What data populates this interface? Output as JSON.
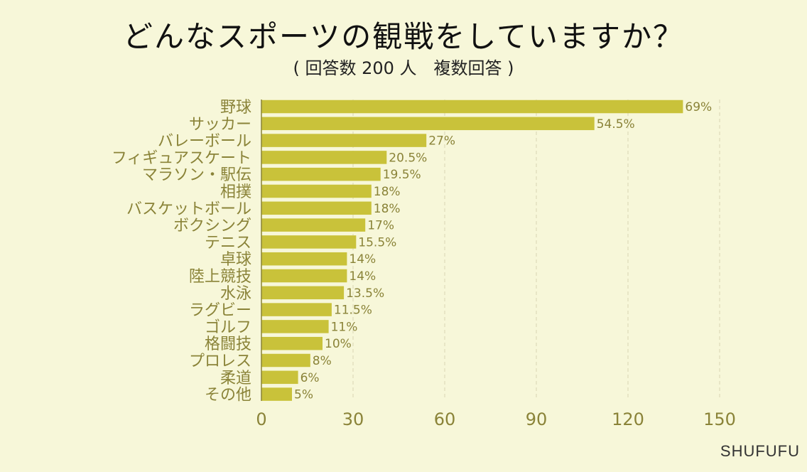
{
  "header": {
    "title": "どんなスポーツの観戦をしていますか？",
    "subtitle": "( 回答数 200 人　複数回答 )"
  },
  "footer": {
    "brand": "SHUFUFU"
  },
  "colors": {
    "bar": "#c9c23a",
    "grid": "#d8d6b4",
    "axis": "#8a8338",
    "background": "#f7f7d9"
  },
  "chart_data": {
    "type": "bar",
    "orientation": "horizontal",
    "categories": [
      "野球",
      "サッカー",
      "バレーボール",
      "フィギュアスケート",
      "マラソン・駅伝",
      "相撲",
      "バスケットボール",
      "ボクシング",
      "テニス",
      "卓球",
      "陸上競技",
      "水泳",
      "ラグビー",
      "ゴルフ",
      "格闘技",
      "プロレス",
      "柔道",
      "その他"
    ],
    "values": [
      138,
      109,
      54,
      41,
      39,
      36,
      36,
      34,
      31,
      28,
      28,
      27,
      23,
      22,
      20,
      16,
      12,
      10
    ],
    "data_labels": [
      "69%",
      "54.5%",
      "27%",
      "20.5%",
      "19.5%",
      "18%",
      "18%",
      "17%",
      "15.5%",
      "14%",
      "14%",
      "13.5%",
      "11.5%",
      "11%",
      "10%",
      "8%",
      "6%",
      "5%"
    ],
    "xlim": [
      0,
      150
    ],
    "xticks": [
      "0",
      "30",
      "60",
      "90",
      "120",
      "150"
    ],
    "grid": true,
    "legend": "none"
  }
}
